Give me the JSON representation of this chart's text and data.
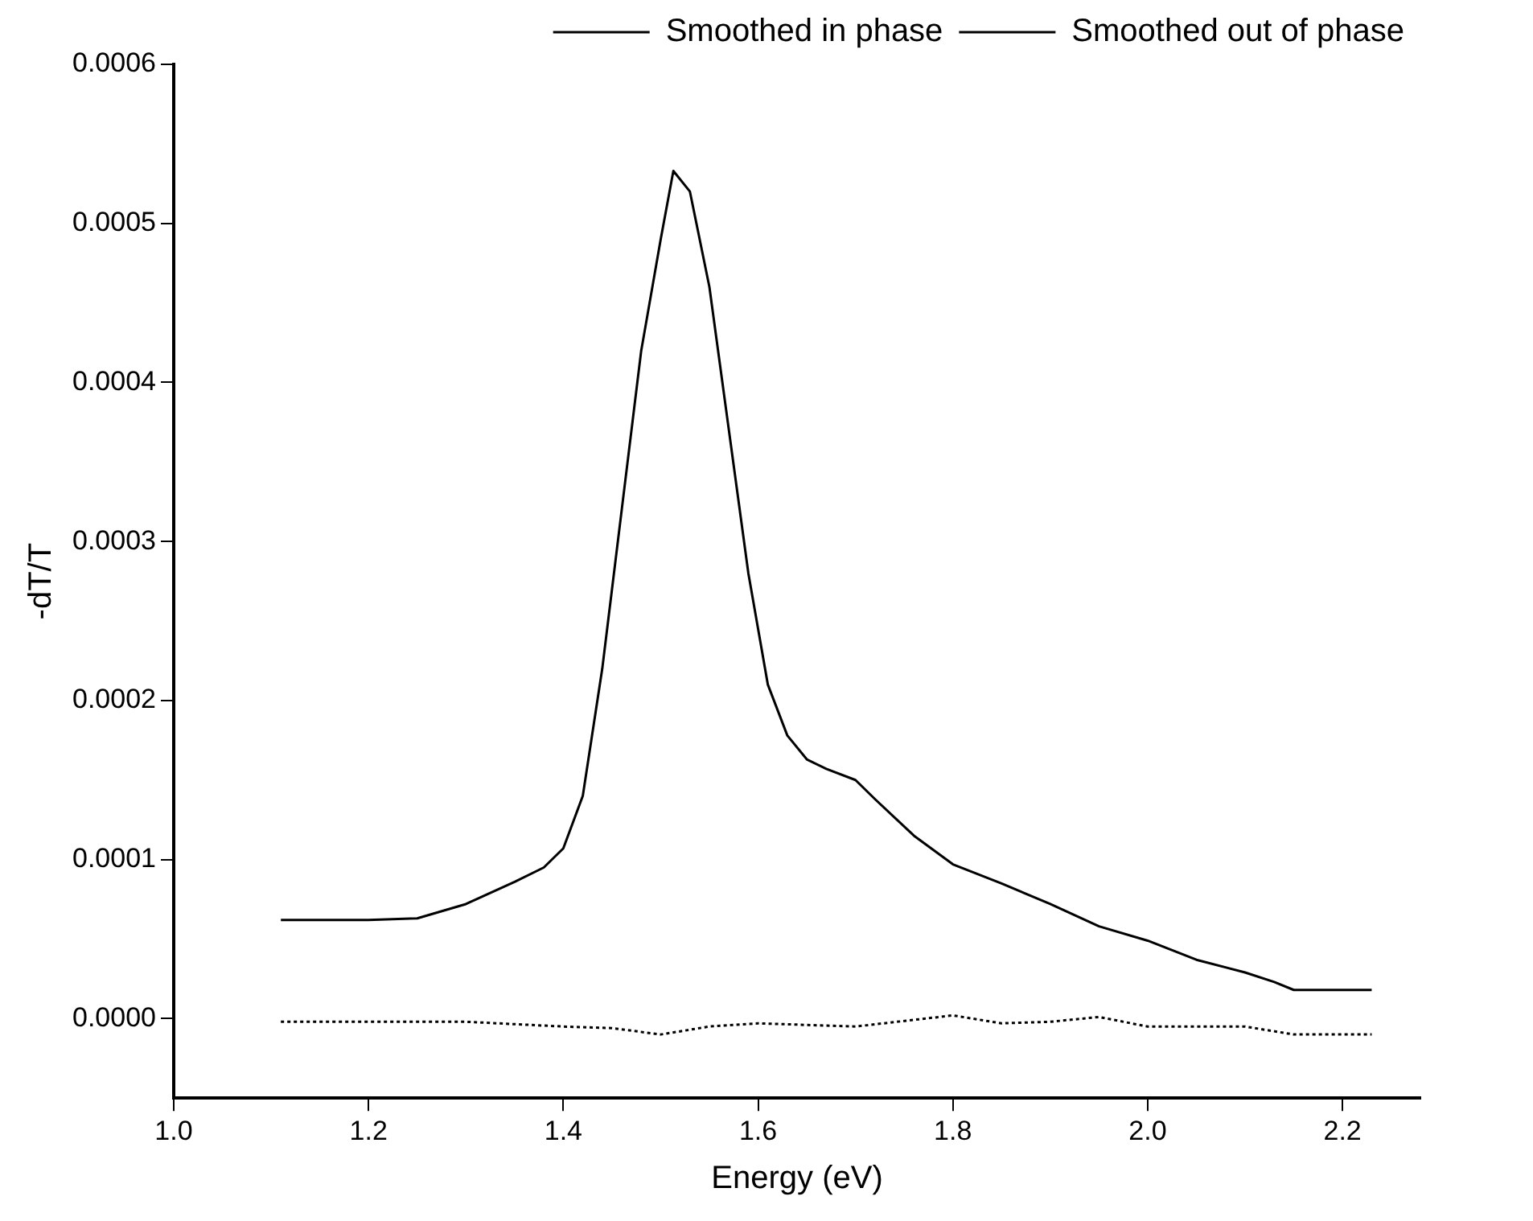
{
  "chart_data": {
    "type": "line",
    "xlabel": "Energy (eV)",
    "ylabel": "-dT/T",
    "legend": "top right",
    "grid": false,
    "marker": "none",
    "xlim": [
      1.0,
      2.28
    ],
    "xticks": [
      {
        "value": 1.0,
        "label": "1.0"
      },
      {
        "value": 1.2,
        "label": "1.2"
      },
      {
        "value": 1.4,
        "label": "1.4"
      },
      {
        "value": 1.6,
        "label": "1.6"
      },
      {
        "value": 1.8,
        "label": "1.8"
      },
      {
        "value": 2.0,
        "label": "2.0"
      },
      {
        "value": 2.2,
        "label": "2.2"
      }
    ],
    "ylim": [
      -5e-05,
      0.0006
    ],
    "yticks": [
      {
        "value": 0,
        "label": "0.0000"
      },
      {
        "value": 0.0001,
        "label": "0.0001"
      },
      {
        "value": 0.0002,
        "label": "0.0002"
      },
      {
        "value": 0.0003,
        "label": "0.0003"
      },
      {
        "value": 0.0004,
        "label": "0.0004"
      },
      {
        "value": 0.0005,
        "label": "0.0005"
      },
      {
        "value": 0.0006,
        "label": "0.0006"
      }
    ],
    "series": [
      {
        "name": "Smoothed in phase",
        "color": "#000000",
        "line_style": "solid",
        "x": [
          1.11,
          1.2,
          1.25,
          1.3,
          1.35,
          1.38,
          1.4,
          1.42,
          1.44,
          1.46,
          1.48,
          1.5,
          1.513,
          1.53,
          1.55,
          1.57,
          1.59,
          1.61,
          1.63,
          1.65,
          1.67,
          1.7,
          1.72,
          1.76,
          1.8,
          1.85,
          1.9,
          1.95,
          2.0,
          2.05,
          2.1,
          2.13,
          2.15,
          2.23
        ],
        "values": [
          6.2e-05,
          6.2e-05,
          6.3e-05,
          7.2e-05,
          8.6e-05,
          9.5e-05,
          0.000107,
          0.00014,
          0.00022,
          0.00032,
          0.00042,
          0.00049,
          0.000533,
          0.00052,
          0.00046,
          0.00037,
          0.00028,
          0.00021,
          0.000178,
          0.000163,
          0.000157,
          0.00015,
          0.000138,
          0.000115,
          9.7e-05,
          8.5e-05,
          7.2e-05,
          5.8e-05,
          4.9e-05,
          3.7e-05,
          2.9e-05,
          2.3e-05,
          1.8e-05,
          1.8e-05
        ]
      },
      {
        "name": "Smoothed out of phase",
        "color": "#000000",
        "line_style": "dotted",
        "x": [
          1.11,
          1.2,
          1.3,
          1.4,
          1.45,
          1.5,
          1.55,
          1.6,
          1.7,
          1.8,
          1.85,
          1.9,
          1.95,
          2.0,
          2.1,
          2.15,
          2.23
        ],
        "values": [
          -2e-06,
          -2e-06,
          -2e-06,
          -5e-06,
          -6e-06,
          -1e-05,
          -5e-06,
          -3e-06,
          -5e-06,
          2e-06,
          -3e-06,
          -2e-06,
          1e-06,
          -5e-06,
          -5e-06,
          -1e-05,
          -1e-05
        ]
      }
    ]
  }
}
